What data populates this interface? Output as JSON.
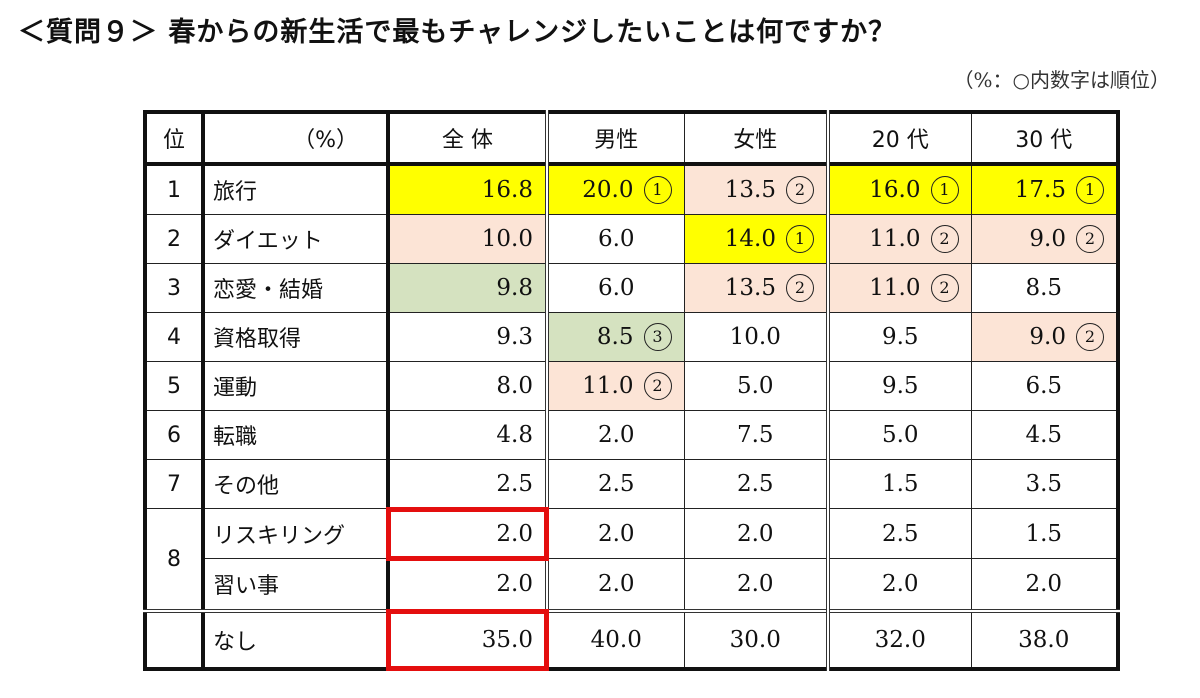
{
  "title": "＜質問９＞ 春からの新生活で最もチャレンジしたいことは何ですか？",
  "note": "（%：○内数字は順位）",
  "table": {
    "headers": [
      "位",
      "（%）",
      "全 体",
      "男性",
      "女性",
      "20 代",
      "30 代"
    ],
    "rows": [
      {
        "rank": "1",
        "label": "旅行",
        "cells": [
          {
            "v": "16.8",
            "r": "",
            "bg": "yellow"
          },
          {
            "v": "20.0",
            "r": "①",
            "bg": "yellow"
          },
          {
            "v": "13.5",
            "r": "②",
            "bg": "peach"
          },
          {
            "v": "16.0",
            "r": "①",
            "bg": "yellow"
          },
          {
            "v": "17.5",
            "r": "①",
            "bg": "yellow"
          }
        ]
      },
      {
        "rank": "2",
        "label": "ダイエット",
        "cells": [
          {
            "v": "10.0",
            "r": "",
            "bg": "peach"
          },
          {
            "v": "6.0",
            "r": "",
            "bg": ""
          },
          {
            "v": "14.0",
            "r": "①",
            "bg": "yellow"
          },
          {
            "v": "11.0",
            "r": "②",
            "bg": "peach"
          },
          {
            "v": "9.0",
            "r": "②",
            "bg": "peach"
          }
        ]
      },
      {
        "rank": "3",
        "label": "恋愛・結婚",
        "cells": [
          {
            "v": "9.8",
            "r": "",
            "bg": "green"
          },
          {
            "v": "6.0",
            "r": "",
            "bg": ""
          },
          {
            "v": "13.5",
            "r": "②",
            "bg": "peach"
          },
          {
            "v": "11.0",
            "r": "②",
            "bg": "peach"
          },
          {
            "v": "8.5",
            "r": "",
            "bg": ""
          }
        ]
      },
      {
        "rank": "4",
        "label": "資格取得",
        "cells": [
          {
            "v": "9.3",
            "r": "",
            "bg": ""
          },
          {
            "v": "8.5",
            "r": "③",
            "bg": "green"
          },
          {
            "v": "10.0",
            "r": "",
            "bg": ""
          },
          {
            "v": "9.5",
            "r": "",
            "bg": ""
          },
          {
            "v": "9.0",
            "r": "②",
            "bg": "peach"
          }
        ]
      },
      {
        "rank": "5",
        "label": "運動",
        "cells": [
          {
            "v": "8.0",
            "r": "",
            "bg": ""
          },
          {
            "v": "11.0",
            "r": "②",
            "bg": "peach"
          },
          {
            "v": "5.0",
            "r": "",
            "bg": ""
          },
          {
            "v": "9.5",
            "r": "",
            "bg": ""
          },
          {
            "v": "6.5",
            "r": "",
            "bg": ""
          }
        ]
      },
      {
        "rank": "6",
        "label": "転職",
        "cells": [
          {
            "v": "4.8",
            "r": "",
            "bg": ""
          },
          {
            "v": "2.0",
            "r": "",
            "bg": ""
          },
          {
            "v": "7.5",
            "r": "",
            "bg": ""
          },
          {
            "v": "5.0",
            "r": "",
            "bg": ""
          },
          {
            "v": "4.5",
            "r": "",
            "bg": ""
          }
        ]
      },
      {
        "rank": "7",
        "label": "その他",
        "cells": [
          {
            "v": "2.5",
            "r": "",
            "bg": ""
          },
          {
            "v": "2.5",
            "r": "",
            "bg": ""
          },
          {
            "v": "2.5",
            "r": "",
            "bg": ""
          },
          {
            "v": "1.5",
            "r": "",
            "bg": ""
          },
          {
            "v": "3.5",
            "r": "",
            "bg": ""
          }
        ]
      },
      {
        "rank": "8",
        "label": "リスキリング",
        "cells": [
          {
            "v": "2.0",
            "r": "",
            "bg": "",
            "highlight": true
          },
          {
            "v": "2.0",
            "r": "",
            "bg": ""
          },
          {
            "v": "2.0",
            "r": "",
            "bg": ""
          },
          {
            "v": "2.5",
            "r": "",
            "bg": ""
          },
          {
            "v": "1.5",
            "r": "",
            "bg": ""
          }
        ]
      },
      {
        "rank": "",
        "label": "習い事",
        "cells": [
          {
            "v": "2.0",
            "r": "",
            "bg": ""
          },
          {
            "v": "2.0",
            "r": "",
            "bg": ""
          },
          {
            "v": "2.0",
            "r": "",
            "bg": ""
          },
          {
            "v": "2.0",
            "r": "",
            "bg": ""
          },
          {
            "v": "2.0",
            "r": "",
            "bg": ""
          }
        ]
      },
      {
        "rank": "",
        "label": "なし",
        "cells": [
          {
            "v": "35.0",
            "r": "",
            "bg": "",
            "highlight": true
          },
          {
            "v": "40.0",
            "r": "",
            "bg": ""
          },
          {
            "v": "30.0",
            "r": "",
            "bg": ""
          },
          {
            "v": "32.0",
            "r": "",
            "bg": ""
          },
          {
            "v": "38.0",
            "r": "",
            "bg": ""
          }
        ]
      }
    ]
  },
  "colors": {
    "yellow": "#ffff00",
    "peach": "#fce4d6",
    "green": "#d5e2c0",
    "highlight_border": "#e40e0e"
  }
}
